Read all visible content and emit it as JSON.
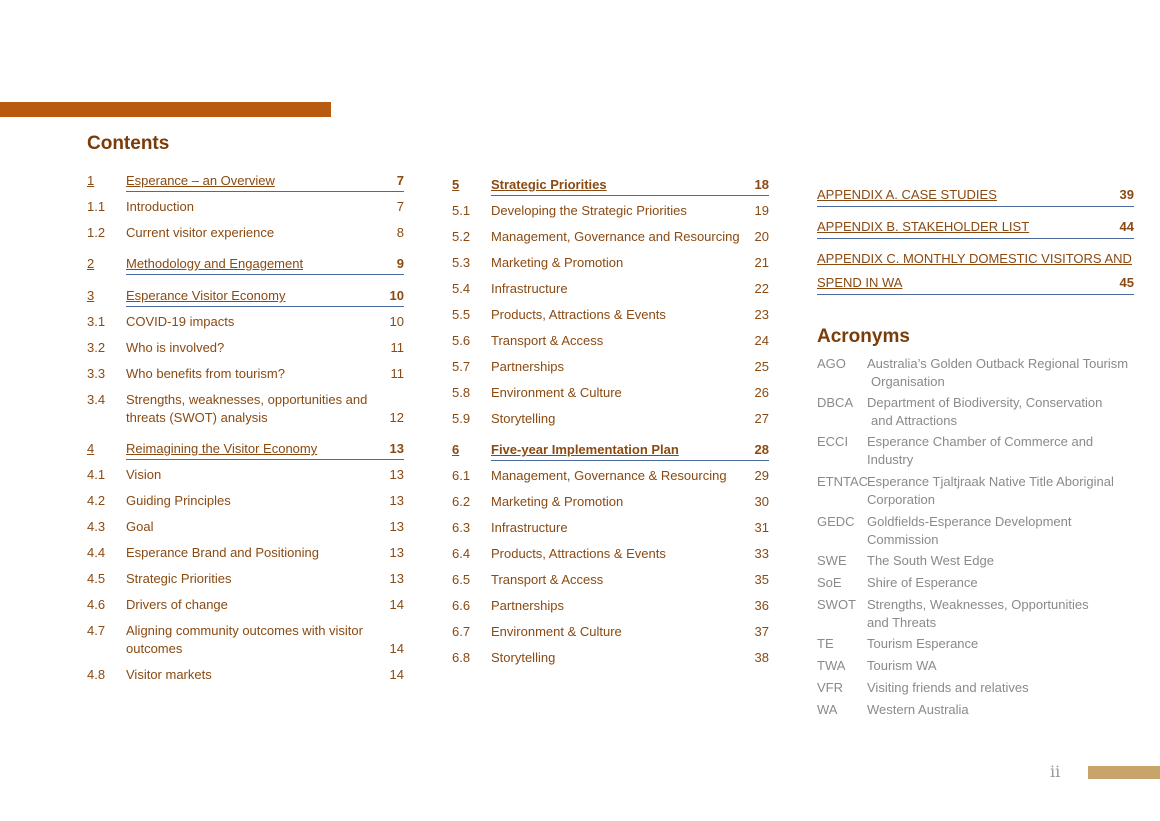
{
  "contents_heading": "Contents",
  "acronyms_heading": "Acronyms",
  "page_number": "ii",
  "col1": [
    {
      "num": "1",
      "text": "Esperance – an Overview",
      "page": "7",
      "top": true
    },
    {
      "num": "1.1",
      "text": "Introduction",
      "page": "7"
    },
    {
      "num": "1.2",
      "text": "Current visitor experience",
      "page": "8"
    },
    {
      "num": "2",
      "text": "Methodology and Engagement",
      "page": "9",
      "top": true
    },
    {
      "num": "3",
      "text": "Esperance Visitor Economy",
      "page": "10",
      "top": true
    },
    {
      "num": "3.1",
      "text": "COVID-19 impacts",
      "page": "10"
    },
    {
      "num": "3.2",
      "text": "Who is involved?",
      "page": "11"
    },
    {
      "num": "3.3",
      "text": "Who benefits from tourism?",
      "page": "11"
    },
    {
      "num": "3.4",
      "text": "Strengths, weaknesses, opportunities and",
      "text2": "threats (SWOT) analysis",
      "page": "12"
    },
    {
      "num": "4",
      "text": "Reimagining the Visitor Economy",
      "page": "13",
      "top": true
    },
    {
      "num": "4.1",
      "text": "Vision",
      "page": "13"
    },
    {
      "num": "4.2",
      "text": "Guiding Principles",
      "page": "13"
    },
    {
      "num": "4.3",
      "text": "Goal",
      "page": "13"
    },
    {
      "num": "4.4",
      "text": "Esperance Brand and Positioning",
      "page": "13"
    },
    {
      "num": "4.5",
      "text": "Strategic Priorities",
      "page": "13"
    },
    {
      "num": "4.6",
      "text": "Drivers of change",
      "page": "14"
    },
    {
      "num": "4.7",
      "text": "Aligning community outcomes with visitor",
      "text2": "outcomes",
      "page": "14"
    },
    {
      "num": "4.8",
      "text": "Visitor markets",
      "page": "14"
    }
  ],
  "col2": [
    {
      "num": "5",
      "text": "Strategic Priorities",
      "page": "18",
      "top": true
    },
    {
      "num": "5.1",
      "text": "Developing the Strategic Priorities",
      "page": "19"
    },
    {
      "num": "5.2",
      "text": "Management, Governance and Resourcing",
      "page": "20"
    },
    {
      "num": "5.3",
      "text": "Marketing & Promotion",
      "page": "21"
    },
    {
      "num": "5.4",
      "text": "Infrastructure",
      "page": "22"
    },
    {
      "num": "5.5",
      "text": "Products, Attractions & Events",
      "page": "23"
    },
    {
      "num": "5.6",
      "text": "Transport & Access",
      "page": "24"
    },
    {
      "num": "5.7",
      "text": "Partnerships",
      "page": "25"
    },
    {
      "num": "5.8",
      "text": "Environment & Culture",
      "page": "26"
    },
    {
      "num": "5.9",
      "text": "Storytelling",
      "page": "27"
    },
    {
      "num": "6",
      "text": "Five-year Implementation Plan",
      "page": "28",
      "top": true
    },
    {
      "num": "6.1",
      "text": "Management, Governance & Resourcing",
      "page": "29"
    },
    {
      "num": "6.2",
      "text": "Marketing & Promotion",
      "page": "30"
    },
    {
      "num": "6.3",
      "text": "Infrastructure",
      "page": "31"
    },
    {
      "num": "6.4",
      "text": "Products, Attractions & Events",
      "page": "33"
    },
    {
      "num": "6.5",
      "text": "Transport & Access",
      "page": "35"
    },
    {
      "num": "6.6",
      "text": "Partnerships",
      "page": "36"
    },
    {
      "num": "6.7",
      "text": "Environment & Culture",
      "page": "37"
    },
    {
      "num": "6.8",
      "text": "Storytelling",
      "page": "38"
    }
  ],
  "appendices": [
    {
      "label": "APPENDIX A. CASE STUDIES",
      "page": "39"
    },
    {
      "label": "APPENDIX B. STAKEHOLDER LIST",
      "page": "44"
    },
    {
      "label": "APPENDIX C. MONTHLY DOMESTIC VISITORS AND",
      "label2": "SPEND IN WA",
      "page": "45"
    }
  ],
  "acronyms": [
    {
      "abbr": "AGO",
      "def": "Australia’s Golden Outback Regional Tourism",
      "def2": "Organisation"
    },
    {
      "abbr": "DBCA",
      "def": "Department of Biodiversity, Conservation",
      "def2": "and Attractions"
    },
    {
      "abbr": "ECCI",
      "def": "Esperance Chamber of Commerce and",
      "def2": "Industry"
    },
    {
      "abbr": "ETNTAC",
      "def": "Esperance Tjaltjraak Native Title Aboriginal",
      "def2": "Corporation"
    },
    {
      "abbr": "GEDC",
      "def": "Goldfields-Esperance Development",
      "def2": "Commission"
    },
    {
      "abbr": "SWE",
      "def": "The South West Edge"
    },
    {
      "abbr": "SoE",
      "def": "Shire of Esperance"
    },
    {
      "abbr": "SWOT",
      "def": "Strengths, Weaknesses, Opportunities",
      "def2": "and Threats"
    },
    {
      "abbr": "TE",
      "def": "Tourism Esperance"
    },
    {
      "abbr": "TWA",
      "def": "Tourism WA"
    },
    {
      "abbr": "VFR",
      "def": "Visiting friends and relatives"
    },
    {
      "abbr": "WA",
      "def": "Western Australia"
    }
  ]
}
